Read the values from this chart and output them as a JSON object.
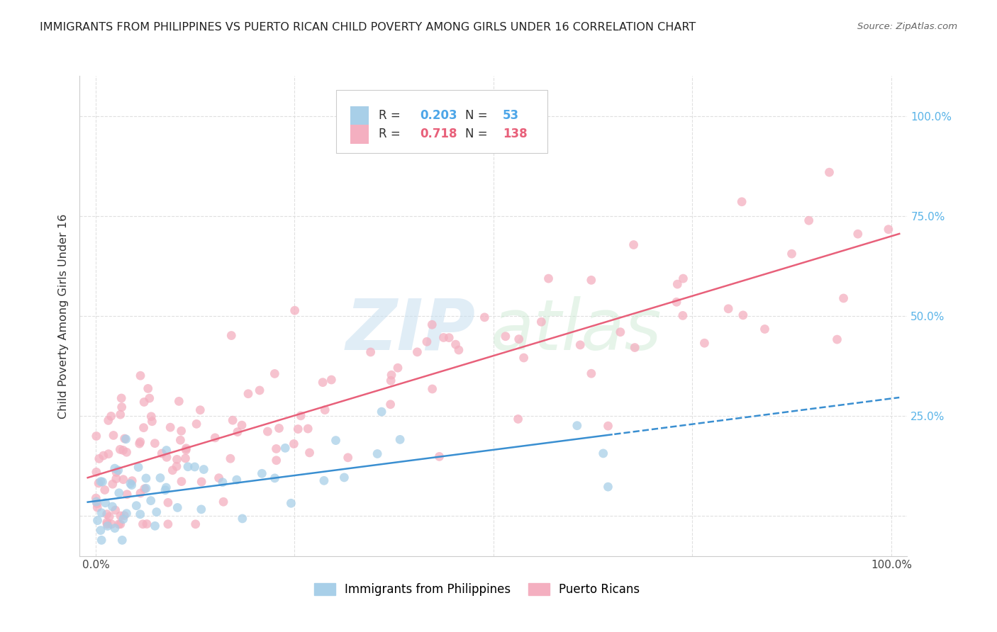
{
  "title": "IMMIGRANTS FROM PHILIPPINES VS PUERTO RICAN CHILD POVERTY AMONG GIRLS UNDER 16 CORRELATION CHART",
  "source": "Source: ZipAtlas.com",
  "ylabel": "Child Poverty Among Girls Under 16",
  "philippines_R": 0.203,
  "philippines_N": 53,
  "puertorico_R": 0.718,
  "puertorico_N": 138,
  "philippines_color": "#a8cfe8",
  "puertorico_color": "#f4afc0",
  "philippines_line_color": "#3a8fd1",
  "puertorico_line_color": "#e8607a",
  "watermark_zip_color": "#c8dff0",
  "watermark_atlas_color": "#c8e8d0",
  "background_color": "#ffffff",
  "grid_color": "#dddddd",
  "right_axis_color": "#5ab4e8",
  "legend_text_color_blue": "#4da6e8",
  "legend_text_color_pink": "#e8607a"
}
